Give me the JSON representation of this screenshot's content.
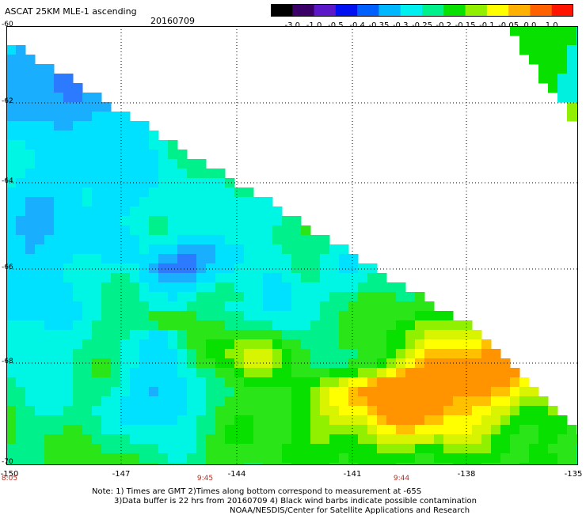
{
  "header": {
    "title": "ASCAT 25KM MLE-1 ascending",
    "date": "20160709"
  },
  "colorbar": {
    "labels": [
      "-3.0",
      "-1.0",
      "-0.5",
      "-0.4",
      "-0.35",
      "-0.3",
      "-0.25",
      "-0.2",
      "-0.15",
      "-0.1",
      "-0.05",
      "0.0",
      "1.0"
    ],
    "colors": [
      "#000000",
      "#3a0068",
      "#5a18c8",
      "#0010f0",
      "#0060ff",
      "#00b8ff",
      "#00f0f0",
      "#00f08c",
      "#08e000",
      "#90f000",
      "#ffff00",
      "#ffb000",
      "#ff6000",
      "#ff1400"
    ]
  },
  "map": {
    "lat_labels": [
      "-60",
      "-62",
      "-64",
      "-66",
      "-68",
      "-70"
    ],
    "lon_labels": [
      "-150",
      "-147",
      "-144",
      "-141",
      "-138",
      "-135"
    ],
    "time_labels": [
      "8:05",
      "9:45",
      "9:44"
    ]
  },
  "notes": {
    "line1": "Note: 1) Times are GMT 2)Times along bottom correspond to measurement at -65S",
    "line2": "3)Data buffer is 22 hrs from 20160709 4) Black wind barbs indicate possible contamination",
    "line3": "NOAA/NESDIS/Center for Satellite Applications and Research"
  }
}
